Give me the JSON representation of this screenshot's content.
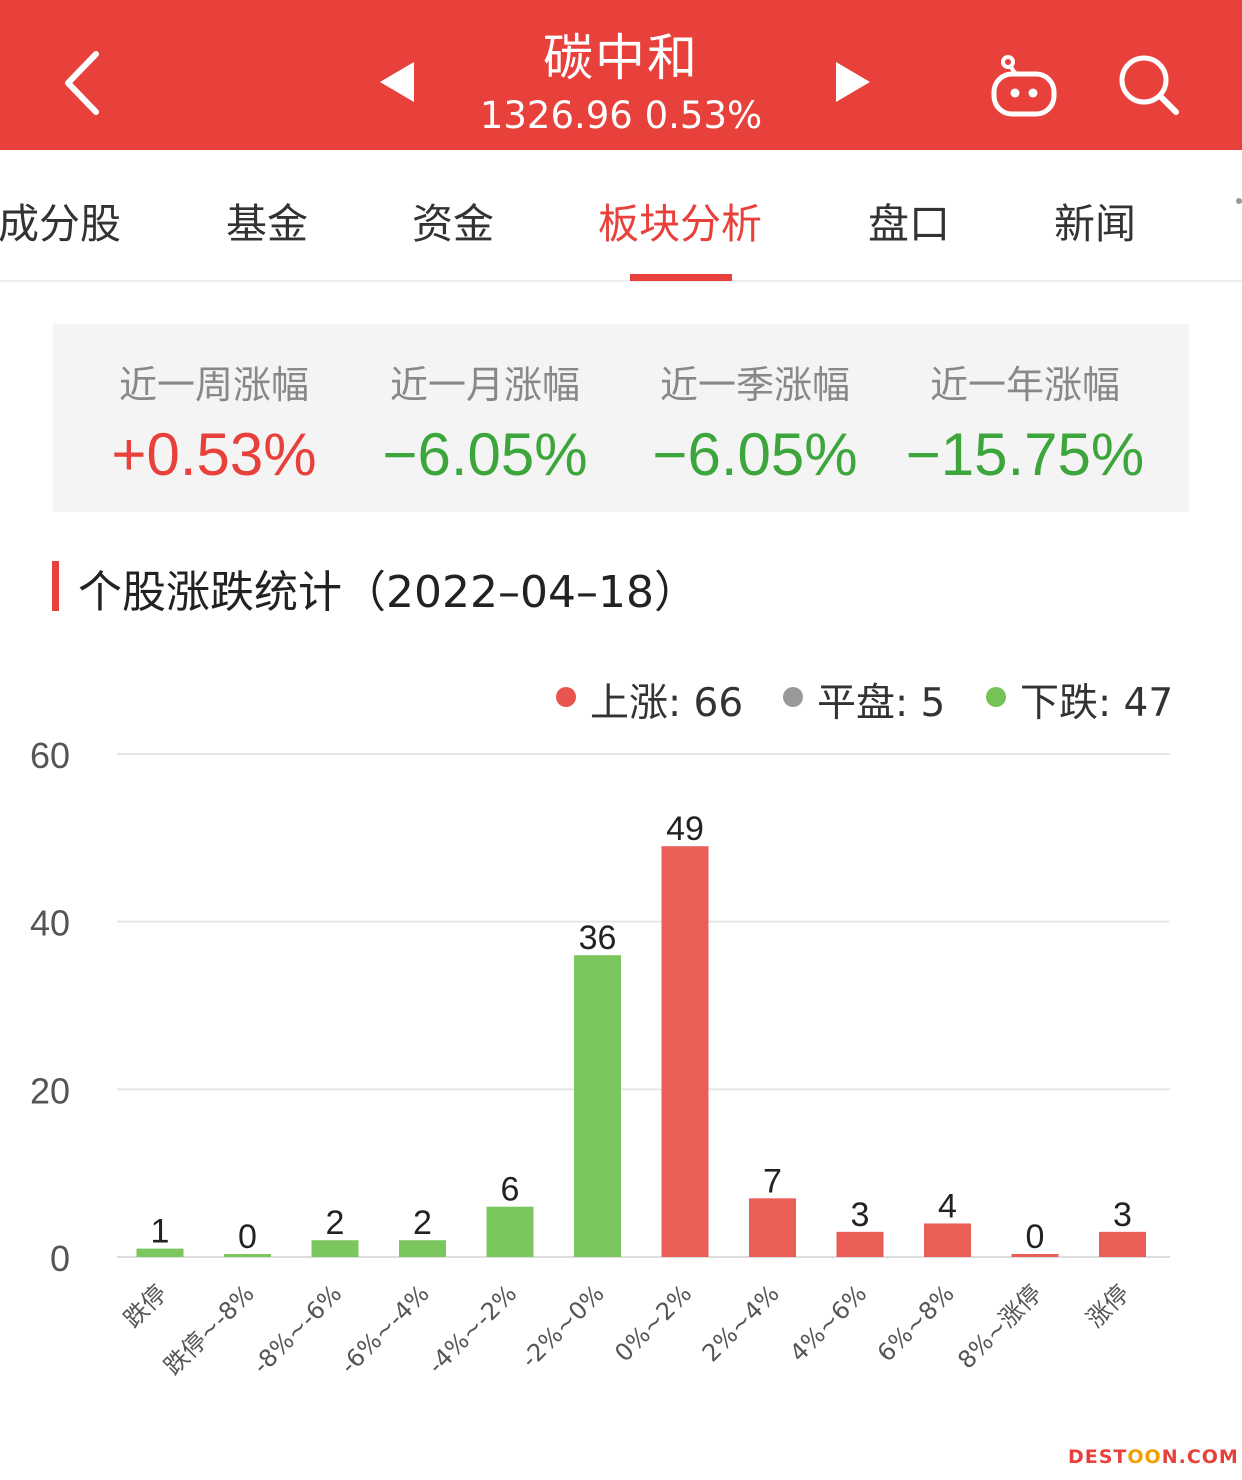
{
  "header": {
    "title": "碳中和",
    "subtitle": "1326.96 0.53%",
    "back_icon": "chevron-left-icon",
    "prev_icon": "triangle-left-icon",
    "next_icon": "triangle-right-icon",
    "robot_icon": "robot-icon",
    "search_icon": "search-icon"
  },
  "tabs": [
    {
      "label": "成分股",
      "active": false
    },
    {
      "label": "基金",
      "active": false
    },
    {
      "label": "资金",
      "active": false
    },
    {
      "label": "板块分析",
      "active": true
    },
    {
      "label": "盘口",
      "active": false
    },
    {
      "label": "新闻",
      "active": false
    }
  ],
  "summary": [
    {
      "label": "近一周涨幅",
      "value": "+0.53%",
      "direction": "up"
    },
    {
      "label": "近一月涨幅",
      "value": "−6.05%",
      "direction": "down"
    },
    {
      "label": "近一季涨幅",
      "value": "−6.05%",
      "direction": "down"
    },
    {
      "label": "近一年涨幅",
      "value": "−15.75%",
      "direction": "down"
    }
  ],
  "section": {
    "title": "个股涨跌统计（2022–04–18）"
  },
  "legend": {
    "up": {
      "label": "上涨: 66",
      "color": "#e8554e"
    },
    "flat": {
      "label": "平盘: 5",
      "color": "#999999"
    },
    "down": {
      "label": "下跌: 47",
      "color": "#77c257"
    }
  },
  "colors": {
    "accent": "#e8403b",
    "up_bar": "#eb5e57",
    "down_bar": "#7bc75e"
  },
  "chart_data": {
    "type": "bar",
    "categories": [
      "跌停",
      "跌停~-8%",
      "-8%~-6%",
      "-6%~-4%",
      "-4%~-2%",
      "-2%~0%",
      "0%~2%",
      "2%~4%",
      "4%~6%",
      "6%~8%",
      "8%~涨停",
      "涨停"
    ],
    "values": [
      1,
      0,
      2,
      2,
      6,
      36,
      49,
      7,
      3,
      4,
      0,
      3
    ],
    "bar_colors": [
      "#7bc75e",
      "#7bc75e",
      "#7bc75e",
      "#7bc75e",
      "#7bc75e",
      "#7bc75e",
      "#eb5e57",
      "#eb5e57",
      "#eb5e57",
      "#eb5e57",
      "#eb5e57",
      "#eb5e57"
    ],
    "yticks": [
      0,
      20,
      40,
      60
    ],
    "ylim": [
      0,
      60
    ],
    "grid": true,
    "legend_position": "top-right"
  },
  "watermark": {
    "pre": "DEST",
    "mid": "OO",
    "post": "N.COM"
  }
}
